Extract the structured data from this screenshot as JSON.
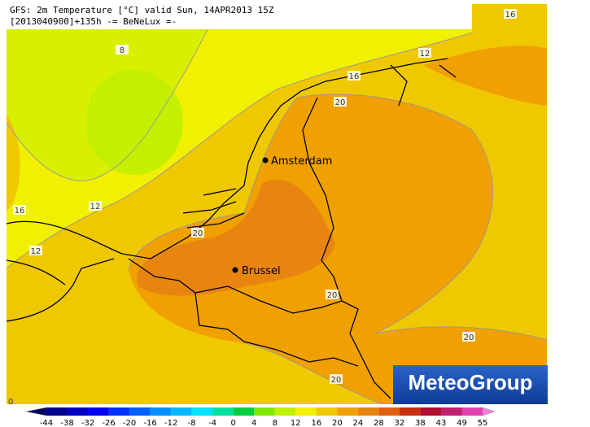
{
  "header": {
    "line1": "GFS: 2m Temperature [°C] valid Sun, 14APR2013 15Z",
    "line2": "[2013040900]+135h -= BeNeLux =-"
  },
  "cities": [
    "Amsterdam",
    "Brussel"
  ],
  "contour_labels": [
    "8",
    "12",
    "12",
    "12",
    "16",
    "16",
    "16",
    "20",
    "20",
    "20",
    "20",
    "20"
  ],
  "corner_label": "0",
  "logo": "MeteoGroup",
  "colorbar": {
    "labels": [
      -44,
      -38,
      -32,
      -26,
      -20,
      -16,
      -12,
      -8,
      -4,
      0,
      4,
      8,
      12,
      16,
      20,
      24,
      28,
      32,
      38,
      43,
      49,
      55
    ],
    "colors": [
      "#000060",
      "#000090",
      "#0000c0",
      "#0000f0",
      "#0030ff",
      "#0060ff",
      "#0090ff",
      "#00b8ff",
      "#00e0ff",
      "#00e0a0",
      "#00d040",
      "#80e800",
      "#c0f000",
      "#f0f000",
      "#f0c800",
      "#f0a000",
      "#e88410",
      "#e06010",
      "#c83010",
      "#b01030",
      "#c02070",
      "#e040b0",
      "#f080e0"
    ]
  }
}
